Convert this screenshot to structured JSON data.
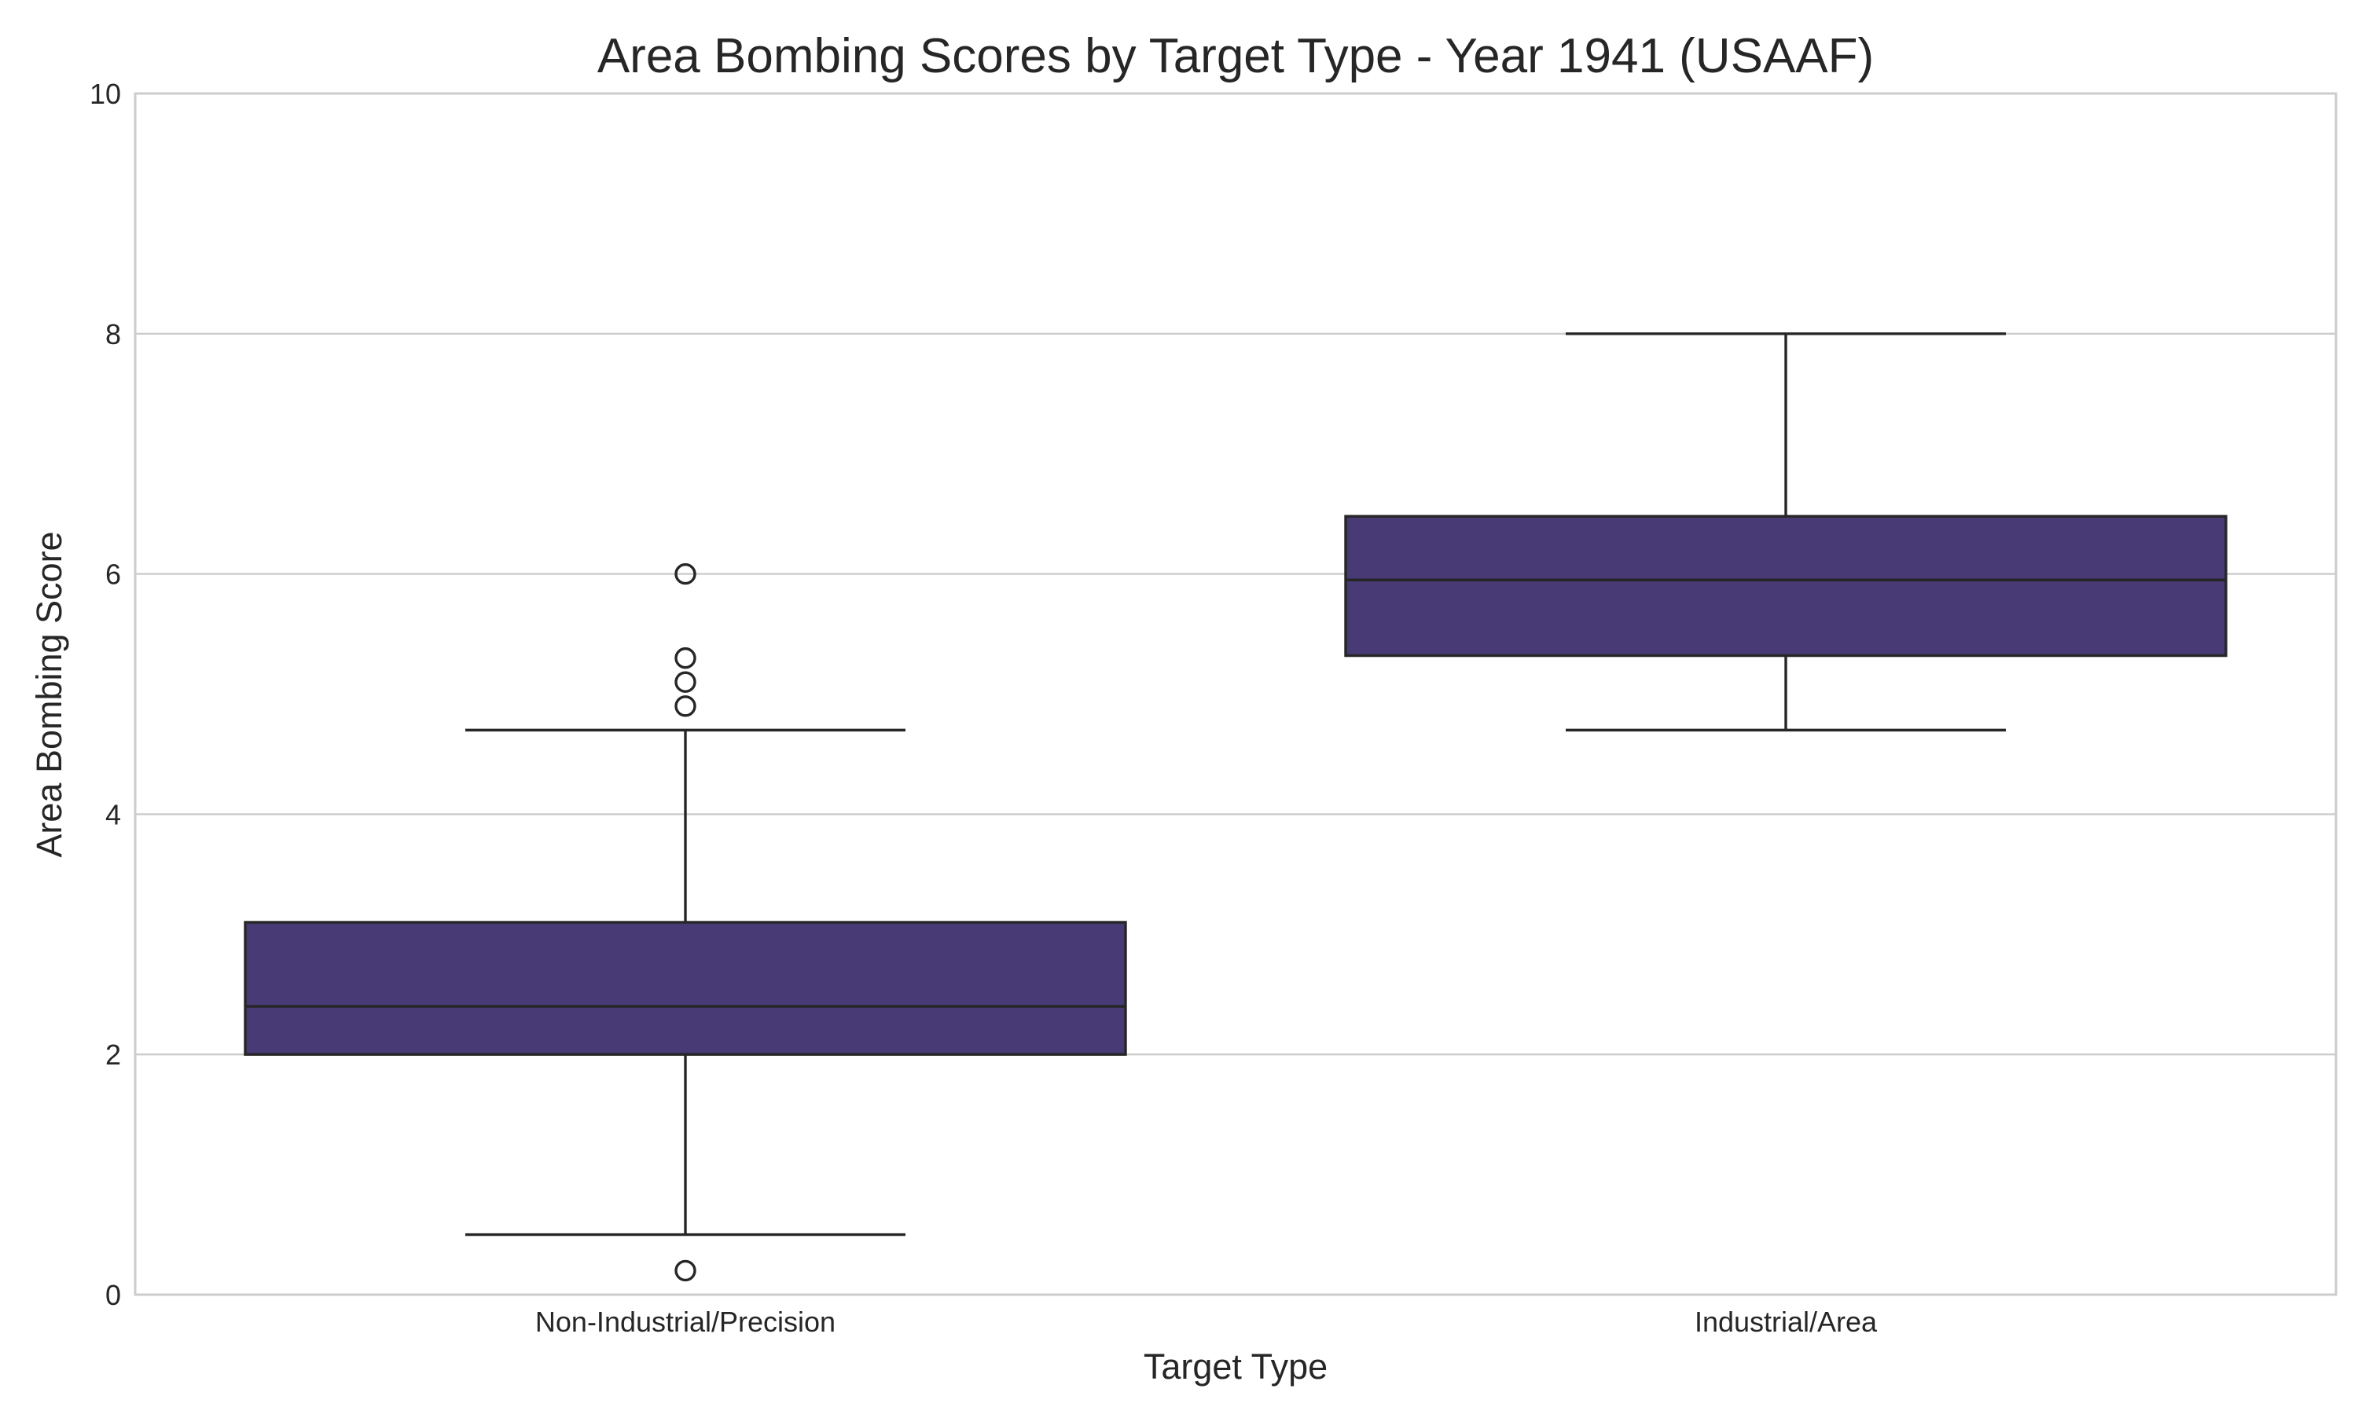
{
  "chart_data": {
    "type": "box",
    "title": "Area Bombing Scores by Target Type - Year 1941 (USAAF)",
    "xlabel": "Target Type",
    "ylabel": "Area Bombing Score",
    "ylim": [
      0,
      10
    ],
    "yticks": [
      "0",
      "2",
      "4",
      "6",
      "8",
      "10"
    ],
    "grid": "horizontal",
    "box_color": "#483A74",
    "edge_color": "#262626",
    "grid_color": "#cccccc",
    "categories": [
      "Non-Industrial/Precision",
      "Industrial/Area"
    ],
    "boxes": [
      {
        "category": "Non-Industrial/Precision",
        "whisker_low": 0.5,
        "q1": 2.0,
        "median": 2.4,
        "q3": 3.1,
        "whisker_high": 4.7,
        "outliers": [
          0.2,
          4.9,
          5.1,
          5.3,
          6.0
        ]
      },
      {
        "category": "Industrial/Area",
        "whisker_low": 4.7,
        "q1": 5.32,
        "median": 5.95,
        "q3": 6.48,
        "whisker_high": 8.0,
        "outliers": []
      }
    ]
  }
}
